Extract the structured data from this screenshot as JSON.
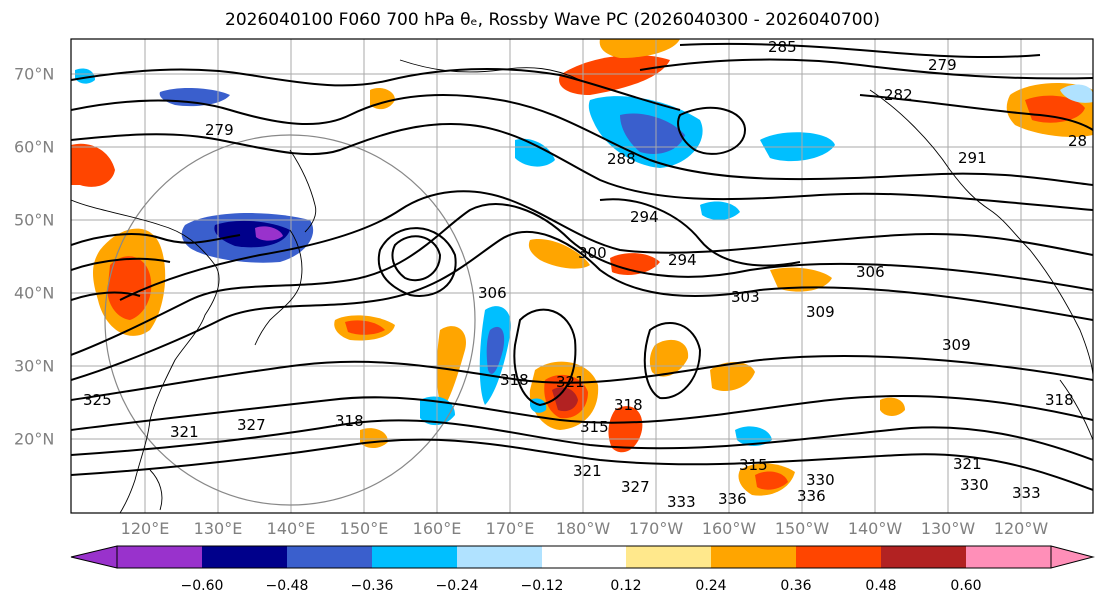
{
  "title": "2026040100 F060 700 hPa θₑ, Rossby Wave PC (2026040300 - 2026040700)",
  "lat_labels": [
    "70°N",
    "60°N",
    "50°N",
    "40°N",
    "30°N",
    "20°N"
  ],
  "lon_labels": [
    "120°E",
    "130°E",
    "140°E",
    "150°E",
    "160°E",
    "170°E",
    "180°W",
    "170°W",
    "160°W",
    "150°W",
    "140°W",
    "130°W",
    "120°W"
  ],
  "contour_labels": [
    "285",
    "279",
    "282",
    "291",
    "28",
    "279",
    "288",
    "294",
    "300",
    "294",
    "303",
    "306",
    "309",
    "309",
    "306",
    "318",
    "321",
    "318",
    "315",
    "315",
    "330",
    "336",
    "336",
    "327",
    "321",
    "333",
    "318",
    "327",
    "321",
    "330",
    "333",
    "318",
    "321",
    "325"
  ],
  "colorbar": {
    "ticks": [
      "−0.60",
      "−0.48",
      "−0.36",
      "−0.24",
      "−0.12",
      "0.12",
      "0.24",
      "0.36",
      "0.48",
      "0.60"
    ],
    "colors": [
      "#9932cc",
      "#00008b",
      "#3a5fcd",
      "#00bfff",
      "#b0e2ff",
      "#ffffff",
      "#ffe88c",
      "#ffa500",
      "#ff4500",
      "#b22222",
      "#ff8fb8"
    ]
  },
  "colors": {
    "grid": "#aaaaaa",
    "label_gray": "#808080"
  }
}
